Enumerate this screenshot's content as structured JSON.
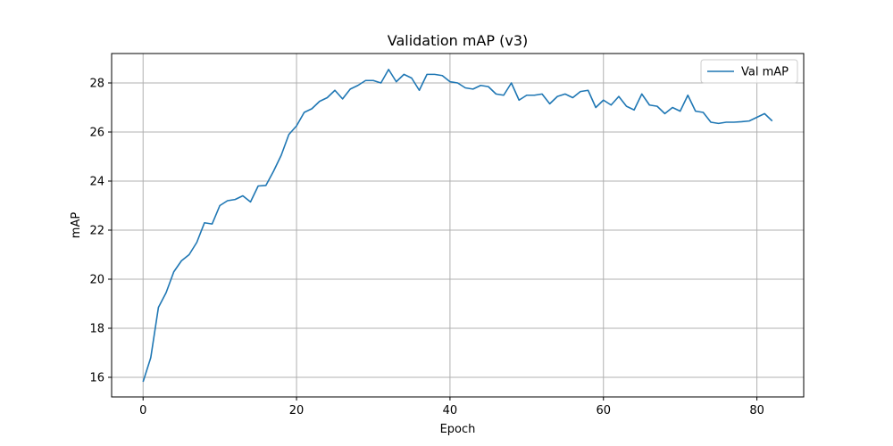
{
  "chart_data": {
    "type": "line",
    "title": "Validation mAP (v3)",
    "xlabel": "Epoch",
    "ylabel": "mAP",
    "xlim": [
      -4.1,
      86.1
    ],
    "ylim": [
      15.2,
      29.2
    ],
    "xticks": [
      0,
      20,
      40,
      60,
      80
    ],
    "yticks": [
      16,
      18,
      20,
      22,
      24,
      26,
      28
    ],
    "grid": true,
    "legend_position": "top-right",
    "series": [
      {
        "name": "Val mAP",
        "color": "#1f77b4",
        "x": [
          0,
          1,
          2,
          3,
          4,
          5,
          6,
          7,
          8,
          9,
          10,
          11,
          12,
          13,
          14,
          15,
          16,
          17,
          18,
          19,
          20,
          21,
          22,
          23,
          24,
          25,
          26,
          27,
          28,
          29,
          30,
          31,
          32,
          33,
          34,
          35,
          36,
          37,
          38,
          39,
          40,
          41,
          42,
          43,
          44,
          45,
          46,
          47,
          48,
          49,
          50,
          51,
          52,
          53,
          54,
          55,
          56,
          57,
          58,
          59,
          60,
          61,
          62,
          63,
          64,
          65,
          66,
          67,
          68,
          69,
          70,
          71,
          72,
          73,
          74,
          75,
          76,
          77,
          78,
          79,
          80,
          81,
          82
        ],
        "values": [
          15.82,
          16.8,
          18.85,
          19.45,
          20.3,
          20.75,
          21.0,
          21.5,
          22.3,
          22.25,
          23.0,
          23.2,
          23.25,
          23.4,
          23.15,
          23.8,
          23.82,
          24.4,
          25.05,
          25.9,
          26.25,
          26.8,
          26.95,
          27.25,
          27.4,
          27.7,
          27.35,
          27.75,
          27.9,
          28.1,
          28.1,
          28.0,
          28.55,
          28.05,
          28.35,
          28.2,
          27.7,
          28.35,
          28.35,
          28.3,
          28.05,
          28.0,
          27.8,
          27.75,
          27.9,
          27.85,
          27.55,
          27.5,
          28.0,
          27.3,
          27.5,
          27.5,
          27.55,
          27.15,
          27.45,
          27.55,
          27.4,
          27.65,
          27.7,
          27.0,
          27.3,
          27.1,
          27.45,
          27.05,
          26.9,
          27.55,
          27.1,
          27.05,
          26.75,
          27.0,
          26.85,
          27.5,
          26.85,
          26.8,
          26.4,
          26.35,
          26.4,
          26.4,
          26.42,
          26.45,
          26.6,
          26.75,
          26.45
        ]
      }
    ]
  }
}
